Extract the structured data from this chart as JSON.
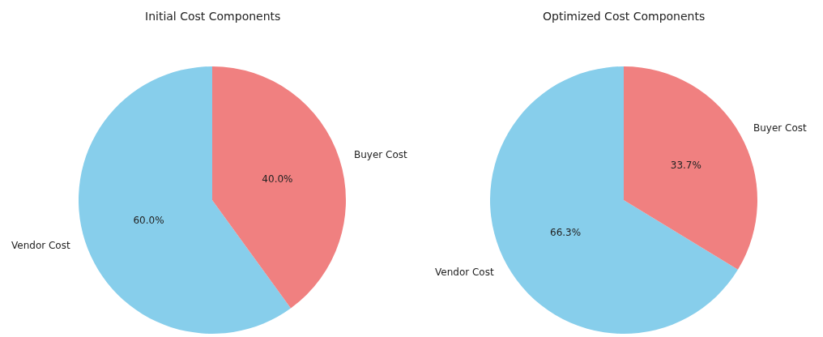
{
  "chart_data": [
    {
      "type": "pie",
      "title": "Initial Cost Components",
      "categories": [
        "Vendor Cost",
        "Buyer Cost"
      ],
      "values": [
        60.0,
        40.0
      ],
      "colors": [
        "#87ceeb",
        "#f08080"
      ],
      "value_labels": [
        "60.0%",
        "40.0%"
      ]
    },
    {
      "type": "pie",
      "title": "Optimized Cost Components",
      "categories": [
        "Vendor Cost",
        "Buyer Cost"
      ],
      "values": [
        66.3,
        33.7
      ],
      "colors": [
        "#87ceeb",
        "#f08080"
      ],
      "value_labels": [
        "66.3%",
        "33.7%"
      ]
    }
  ]
}
